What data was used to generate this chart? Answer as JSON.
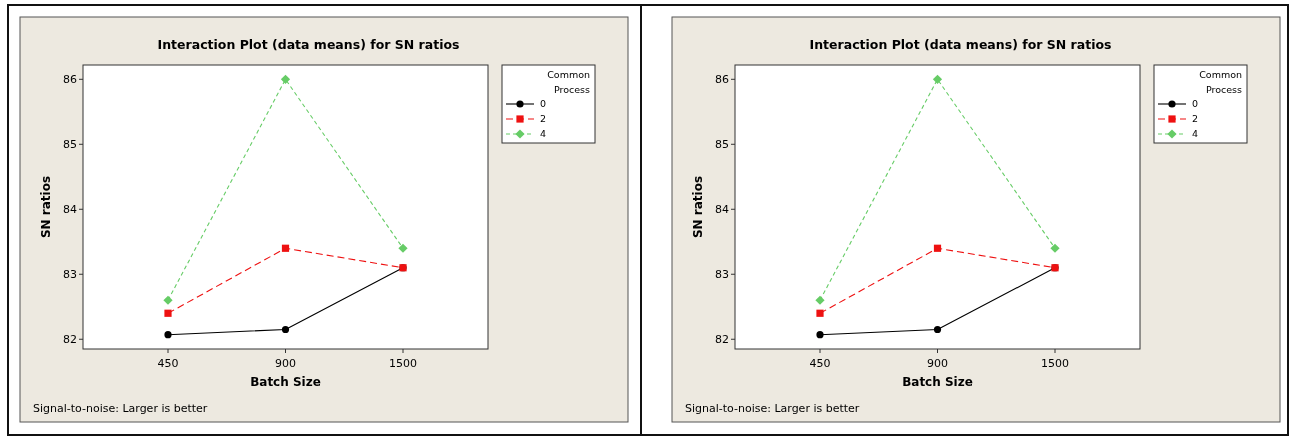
{
  "chart_data": [
    {
      "type": "line",
      "title": "Interaction Plot (data means) for SN ratios",
      "xlabel": "Batch Size",
      "ylabel": "SN ratios",
      "legend_title": "Common Process",
      "categories": [
        "450",
        "900",
        "1500"
      ],
      "ylim": [
        81.85,
        86.22
      ],
      "yticks": [
        82,
        83,
        84,
        85,
        86
      ],
      "grid": false,
      "legend": "top right",
      "annotations": [
        "Signal-to-noise: Larger is better"
      ],
      "series": [
        {
          "name": "0",
          "color": "#000000",
          "marker": "circle",
          "line_style": "solid",
          "values": [
            82.07,
            82.15,
            83.1
          ]
        },
        {
          "name": "2",
          "color": "#ee1111",
          "marker": "square",
          "line_style": "dashed",
          "values": [
            82.4,
            83.4,
            83.1
          ]
        },
        {
          "name": "4",
          "color": "#66cc66",
          "marker": "diamond",
          "line_style": "dashed",
          "values": [
            82.6,
            86.0,
            83.4
          ]
        }
      ]
    },
    {
      "type": "line",
      "title": "Interaction Plot (data means) for SN ratios",
      "xlabel": "Batch Size",
      "ylabel": "SN ratios",
      "legend_title": "Common Process",
      "categories": [
        "450",
        "900",
        "1500"
      ],
      "ylim": [
        81.85,
        86.22
      ],
      "yticks": [
        82,
        83,
        84,
        85,
        86
      ],
      "grid": false,
      "legend": "top right",
      "annotations": [
        "Signal-to-noise: Larger is better"
      ],
      "series": [
        {
          "name": "0",
          "color": "#000000",
          "marker": "circle",
          "line_style": "solid",
          "values": [
            82.07,
            82.15,
            83.1
          ]
        },
        {
          "name": "2",
          "color": "#ee1111",
          "marker": "square",
          "line_style": "dashed",
          "values": [
            82.4,
            83.4,
            83.1
          ]
        },
        {
          "name": "4",
          "color": "#66cc66",
          "marker": "diamond",
          "line_style": "dashed",
          "values": [
            82.6,
            86.0,
            83.4
          ]
        }
      ]
    }
  ]
}
